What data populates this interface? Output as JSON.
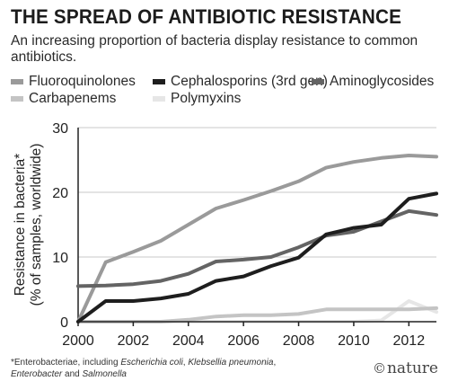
{
  "header": {
    "title": "THE SPREAD OF ANTIBIOTIC RESISTANCE",
    "subtitle": "An increasing proportion of bacteria display resistance to common antibiotics."
  },
  "footnote": {
    "prefix": "*Enterobacteriae, including ",
    "species1": "Escherichia coli",
    "sep1": ", ",
    "species2": "Klebsellia pneumonia",
    "sep2": ",",
    "species3": "Enterobacter",
    "sep3": " and ",
    "species4": "Salmonella"
  },
  "credit": {
    "mark": "©",
    "name": "nature"
  },
  "colors": {
    "Fluoroquinolones": "#9a9a9a",
    "Cephalosporins (3rd gen)": "#1e1e1e",
    "Aminoglycosides": "#646464",
    "Carbapenems": "#c4c4c4",
    "Polymyxins": "#e6e6e6",
    "grid": "#c8c8c8",
    "axis": "#222222"
  },
  "chart_data": {
    "type": "line",
    "xlabel": "",
    "ylabel": "Resistance in bacteria* (% of samples, worldwide)",
    "ylabel_lines": [
      "Resistance in bacteria*",
      "(% of samples, worldwide)"
    ],
    "xlim": [
      2000,
      2013
    ],
    "ylim": [
      0,
      30
    ],
    "xticks": [
      2000,
      2002,
      2004,
      2006,
      2008,
      2010,
      2012
    ],
    "yticks": [
      0,
      10,
      20,
      30
    ],
    "grid": "horizontal",
    "legend_position": "top",
    "x": [
      2000,
      2001,
      2002,
      2003,
      2004,
      2005,
      2006,
      2007,
      2008,
      2009,
      2010,
      2011,
      2012,
      2013
    ],
    "series": [
      {
        "name": "Fluoroquinolones",
        "values": [
          0,
          9.2,
          10.8,
          12.5,
          15.0,
          17.5,
          18.8,
          20.2,
          21.7,
          23.8,
          24.7,
          25.3,
          25.7,
          25.5
        ]
      },
      {
        "name": "Cephalosporins (3rd gen)",
        "values": [
          0,
          3.2,
          3.2,
          3.6,
          4.3,
          6.3,
          7.0,
          8.6,
          9.9,
          13.5,
          14.5,
          15.0,
          19.0,
          19.8
        ]
      },
      {
        "name": "Aminoglycosides",
        "values": [
          5.5,
          5.6,
          5.8,
          6.3,
          7.4,
          9.3,
          9.6,
          10.0,
          11.5,
          13.3,
          13.9,
          15.5,
          17.1,
          16.5
        ]
      },
      {
        "name": "Carbapenems",
        "values": [
          0,
          0,
          0,
          0,
          0.3,
          0.8,
          1.0,
          1.0,
          1.2,
          1.9,
          1.9,
          1.9,
          1.9,
          2.1
        ]
      },
      {
        "name": "Polymyxins",
        "values": [
          0,
          0,
          0,
          0,
          0,
          0,
          0,
          0,
          0,
          0,
          0,
          0.2,
          3.2,
          1.5
        ]
      }
    ]
  }
}
